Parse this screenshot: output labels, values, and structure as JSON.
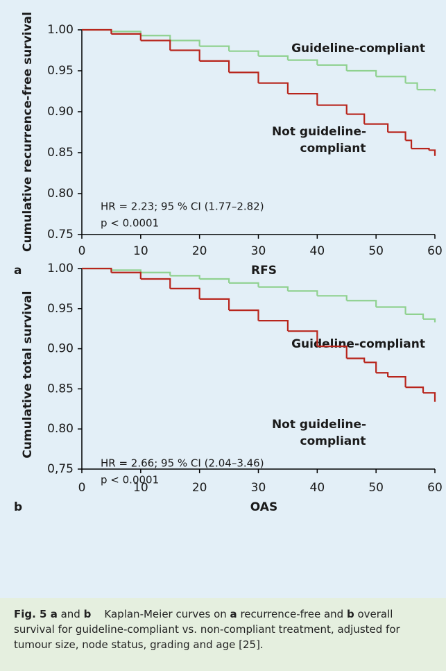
{
  "chart_data": [
    {
      "type": "line",
      "step": true,
      "panel_label": "a",
      "x_label": "RFS",
      "y_label": "Cumulative recurrence-free survival",
      "xlim": [
        0,
        60
      ],
      "xticks": [
        0,
        10,
        20,
        30,
        40,
        50,
        60
      ],
      "ylim": [
        0.75,
        1.0
      ],
      "yticks": [
        0.75,
        {
          "value": 0.8,
          "label": "0.80"
        },
        0.85,
        {
          "value": 0.9,
          "label": "0.90"
        },
        0.95,
        {
          "value": 1.0,
          "label": "1.00"
        }
      ],
      "series": [
        {
          "name": "Guideline-compliant",
          "color": "#8fd18f",
          "x": [
            0,
            5,
            10,
            15,
            20,
            25,
            30,
            35,
            40,
            45,
            50,
            55,
            57,
            60
          ],
          "values": [
            1.0,
            0.998,
            0.993,
            0.987,
            0.98,
            0.974,
            0.968,
            0.963,
            0.957,
            0.95,
            0.943,
            0.935,
            0.927,
            0.925
          ]
        },
        {
          "name": "Not guideline-compliant",
          "color": "#b8251c",
          "x": [
            0,
            5,
            10,
            15,
            20,
            25,
            30,
            35,
            40,
            45,
            48,
            52,
            55,
            56,
            59,
            60
          ],
          "values": [
            1.0,
            0.995,
            0.987,
            0.975,
            0.962,
            0.948,
            0.935,
            0.922,
            0.908,
            0.897,
            0.885,
            0.875,
            0.865,
            0.855,
            0.853,
            0.846
          ]
        }
      ],
      "annotations": [
        "HR = 2.23; 95 % CI (1.77–2.82)",
        "p < 0.0001"
      ]
    },
    {
      "type": "line",
      "step": true,
      "panel_label": "b",
      "x_label": "OAS",
      "y_label": "Cumulative total survival",
      "xlim": [
        0,
        60
      ],
      "xticks": [
        0,
        10,
        20,
        30,
        40,
        50,
        60
      ],
      "ylim": [
        0.75,
        1.0
      ],
      "yticks": [
        {
          "value": 0.75,
          "label": "0,75"
        },
        {
          "value": 0.8,
          "label": "0.80"
        },
        0.85,
        {
          "value": 0.9,
          "label": "0.90"
        },
        0.95,
        {
          "value": 1.0,
          "label": "1.00"
        }
      ],
      "series": [
        {
          "name": "Guideline-compliant",
          "color": "#8fd18f",
          "x": [
            0,
            5,
            10,
            15,
            20,
            25,
            30,
            35,
            40,
            45,
            50,
            55,
            58,
            60
          ],
          "values": [
            1.0,
            0.998,
            0.995,
            0.991,
            0.987,
            0.982,
            0.977,
            0.972,
            0.966,
            0.96,
            0.952,
            0.943,
            0.937,
            0.933
          ]
        },
        {
          "name": "Not guideline-compliant",
          "color": "#b8251c",
          "x": [
            0,
            5,
            10,
            15,
            20,
            25,
            30,
            35,
            40,
            45,
            48,
            50,
            52,
            55,
            58,
            60
          ],
          "values": [
            1.0,
            0.995,
            0.987,
            0.975,
            0.962,
            0.948,
            0.935,
            0.922,
            0.903,
            0.888,
            0.883,
            0.87,
            0.865,
            0.852,
            0.845,
            0.834
          ]
        }
      ],
      "annotations": [
        "HR = 2.66; 95 % CI (2.04–3.46)",
        "p < 0.0001"
      ]
    }
  ],
  "caption": [
    {
      "text": "Fig. 5 a",
      "bold": true
    },
    {
      "text": " and ",
      "bold": false
    },
    {
      "text": "b",
      "bold": true
    },
    {
      "text": "    Kaplan-Meier curves on ",
      "bold": false
    },
    {
      "text": "a",
      "bold": true
    },
    {
      "text": " recurrence-free and ",
      "bold": false
    },
    {
      "text": "b",
      "bold": true
    },
    {
      "text": " overall survival for guideline-compliant vs. non-compliant treatment, adjusted for tumour size, node status, grading and age [25].",
      "bold": false
    }
  ]
}
